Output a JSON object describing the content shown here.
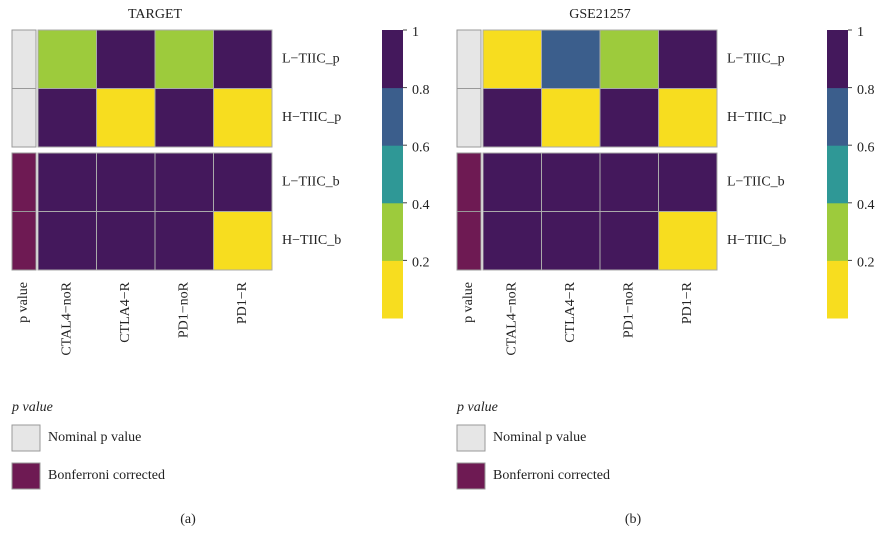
{
  "chart_data": [
    {
      "type": "heatmap",
      "title": "TARGET",
      "caption": "(a)",
      "rows": [
        "L−TIIC_p",
        "H−TIIC_p",
        "L−TIIC_b",
        "H−TIIC_b"
      ],
      "columns": [
        "CTAL4−noR",
        "CTLA4−R",
        "PD1−noR",
        "PD1−R"
      ],
      "values": [
        [
          0.3,
          0.9,
          0.3,
          0.9
        ],
        [
          0.9,
          0.1,
          0.9,
          0.1
        ],
        [
          0.9,
          0.9,
          0.9,
          0.9
        ],
        [
          0.9,
          0.9,
          0.9,
          0.1
        ]
      ],
      "clim": [
        0,
        1
      ],
      "colors": [
        "#f7dd1f",
        "#9dcb3c",
        "#2f9896",
        "#3b5e8c",
        "#44185c"
      ],
      "cticks": [
        0.2,
        0.4,
        0.6,
        0.8,
        1
      ],
      "annotation": {
        "label": "p value",
        "colors": [
          "#e6e6e6",
          "#e6e6e6",
          "#6e1a53",
          "#6e1a53"
        ]
      },
      "legend": {
        "title": "p value",
        "items": [
          {
            "label": "Nominal p value",
            "color": "#e6e6e6"
          },
          {
            "label": "Bonferroni corrected",
            "color": "#6e1a53"
          }
        ]
      }
    },
    {
      "type": "heatmap",
      "title": "GSE21257",
      "caption": "(b)",
      "rows": [
        "L−TIIC_p",
        "H−TIIC_p",
        "L−TIIC_b",
        "H−TIIC_b"
      ],
      "columns": [
        "CTAL4−noR",
        "CTLA4−R",
        "PD1−noR",
        "PD1−R"
      ],
      "values": [
        [
          0.1,
          0.7,
          0.3,
          0.9
        ],
        [
          0.9,
          0.1,
          0.9,
          0.1
        ],
        [
          0.9,
          0.9,
          0.9,
          0.9
        ],
        [
          0.9,
          0.9,
          0.9,
          0.1
        ]
      ],
      "clim": [
        0,
        1
      ],
      "colors": [
        "#f7dd1f",
        "#9dcb3c",
        "#2f9896",
        "#3b5e8c",
        "#44185c"
      ],
      "cticks": [
        0.2,
        0.4,
        0.6,
        0.8,
        1
      ],
      "annotation": {
        "label": "p value",
        "colors": [
          "#e6e6e6",
          "#e6e6e6",
          "#6e1a53",
          "#6e1a53"
        ]
      },
      "legend": {
        "title": "p value",
        "items": [
          {
            "label": "Nominal p value",
            "color": "#e6e6e6"
          },
          {
            "label": "Bonferroni corrected",
            "color": "#6e1a53"
          }
        ]
      }
    }
  ]
}
